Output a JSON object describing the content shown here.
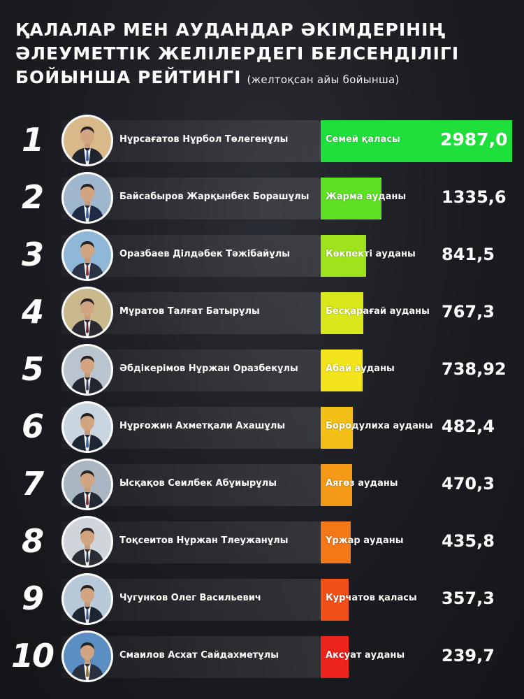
{
  "header": {
    "title_line1": "ҚАЛАЛАР МЕН АУДАНДАР ӘКІМДЕРІНІҢ",
    "title_line2": "ӘЛЕУМЕТТІК ЖЕЛІЛЕРДЕГІ БЕЛСЕНДІЛІГІ",
    "title_line3": "БОЙЫНША РЕЙТИНГІ",
    "subtitle": "(желтоқсан айы бойынша)"
  },
  "chart_data": {
    "type": "bar",
    "orientation": "horizontal",
    "title": "ҚАЛАЛАР МЕН АУДАНДАР ӘКІМДЕРІНІҢ ӘЛЕУМЕТТІК ЖЕЛІЛЕРДЕГІ БЕЛСЕНДІЛІГІ БОЙЫНША РЕЙТИНГІ",
    "subtitle": "(желтоқсан айы бойынша)",
    "entries": [
      {
        "rank": "1",
        "name": "Нұрсағатов Нұрбол Төлегенұлы",
        "region": "Семей қаласы",
        "value": 2987.0,
        "value_label": "2987,0",
        "color": "#1fe03a"
      },
      {
        "rank": "2",
        "name": "Байсабыров Жарқынбек Борашұлы",
        "region": "Жарма ауданы",
        "value": 1335.6,
        "value_label": "1335,6",
        "color": "#5ee024"
      },
      {
        "rank": "3",
        "name": "Оразбаев Ділдәбек Тәжібайұлы",
        "region": "Көкпекті ауданы",
        "value": 841.5,
        "value_label": "841,5",
        "color": "#9ee31c"
      },
      {
        "rank": "4",
        "name": "Мұратов Талғат Батырұлы",
        "region": "Бесқарағай ауданы",
        "value": 767.3,
        "value_label": "767,3",
        "color": "#d8e81a"
      },
      {
        "rank": "5",
        "name": "Әбдікерімов Нұржан Оразбекұлы",
        "region": "Абай ауданы",
        "value": 738.92,
        "value_label": "738,92",
        "color": "#f3e31a"
      },
      {
        "rank": "6",
        "name": "Нұрғожин Ахметқали Ахашұлы",
        "region": "Бородулиха ауданы",
        "value": 482.4,
        "value_label": "482,4",
        "color": "#f4bf17"
      },
      {
        "rank": "7",
        "name": "Ысқақов Сеилбек Абұиырұлы",
        "region": "Аягөз ауданы",
        "value": 470.3,
        "value_label": "470,3",
        "color": "#f59a17"
      },
      {
        "rank": "8",
        "name": "Тоқсеитов Нұржан Тлеужанұлы",
        "region": "Үржар ауданы",
        "value": 435.8,
        "value_label": "435,8",
        "color": "#f47718"
      },
      {
        "rank": "9",
        "name": "Чугунков Олег Васильевич",
        "region": "Курчатов қаласы",
        "value": 357.3,
        "value_label": "357,3",
        "color": "#f25019"
      },
      {
        "rank": "10",
        "name": "Смаилов Асхат Сайдахметұлы",
        "region": "Аксуат ауданы",
        "value": 239.7,
        "value_label": "239,7",
        "color": "#ec241b"
      }
    ]
  }
}
